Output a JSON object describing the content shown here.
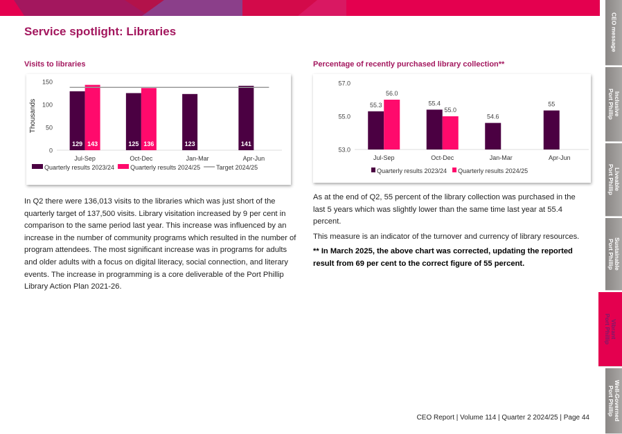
{
  "page": {
    "title": "Service spotlight: Libraries",
    "footer": "CEO Report | Volume 114  | Quarter 2 2024/25 | Page 44"
  },
  "tabs": [
    {
      "label": "CEO message"
    },
    {
      "label": "Inclusive\nPort Phillip"
    },
    {
      "label": "Liveable\nPort Phillip"
    },
    {
      "label": "Sustainable\nPort Phillip"
    },
    {
      "label": "Vibrant\nPort Phillip"
    },
    {
      "label": "Well-Governed\nPort Phillip"
    }
  ],
  "left": {
    "subtitle": "Visits to libraries",
    "text": "In Q2 there were 136,013 visits to the libraries which was just short of the quarterly target of 137,500 visits. Library visitation increased by 9 per cent in comparison to the same period last year. This increase was influenced by an increase in the number of community programs which resulted in the number of program attendees. The most significant increase was in programs for adults and older adults with a focus on digital literacy, social connection, and literary events. The increase in programming is a core deliverable of the Port Phillip Library Action Plan 2021-26."
  },
  "right": {
    "subtitle": "Percentage of recently purchased library collection**",
    "text1": "As at the end of Q2, 55 percent of the library collection was purchased in the last 5 years which was slightly lower than the same time last year at 55.4 percent.",
    "text2": "This measure is an indicator of the turnover and currency of library resources.",
    "text3": "** In March 2025, the above chart was corrected, updating the reported result from 69 per cent to the correct figure of 55 percent."
  },
  "chart_data": [
    {
      "type": "bar",
      "title": "Visits to libraries",
      "ylabel": "Thousands",
      "ylim": [
        0,
        150
      ],
      "yticks": [
        "0",
        "50",
        "100",
        "150"
      ],
      "categories": [
        "Jul-Sep",
        "Oct-Dec",
        "Jan-Mar",
        "Apr-Jun"
      ],
      "series": [
        {
          "name": "Quarterly results 2023/24",
          "color": "#4b0042",
          "values": [
            129,
            125,
            123,
            141
          ],
          "labels": [
            "129",
            "125",
            "123",
            "141"
          ]
        },
        {
          "name": "Quarterly results 2024/25",
          "color": "#ff0a6c",
          "values": [
            143,
            136,
            null,
            null
          ],
          "labels": [
            "143",
            "136",
            "",
            ""
          ]
        }
      ],
      "target": {
        "name": "Target 2024/25",
        "value": 137.5,
        "color": "#999999"
      }
    },
    {
      "type": "bar",
      "title": "Percentage of recently purchased library collection**",
      "ylim": [
        53,
        57
      ],
      "yticks": [
        "53.0",
        "55.0",
        "57.0"
      ],
      "categories": [
        "Jul-Sep",
        "Oct-Dec",
        "Jan-Mar",
        "Apr-Jun"
      ],
      "series": [
        {
          "name": "Quarterly results 2023/24",
          "color": "#4b0042",
          "values": [
            55.3,
            55.4,
            54.6,
            55.35
          ],
          "labels": [
            "55.3",
            "55.4",
            "54.6",
            "55"
          ]
        },
        {
          "name": "Quarterly results 2024/25",
          "color": "#ff0a6c",
          "values": [
            56.0,
            55.0,
            null,
            null
          ],
          "labels": [
            "56.0",
            "55.0",
            "",
            ""
          ]
        }
      ]
    }
  ]
}
